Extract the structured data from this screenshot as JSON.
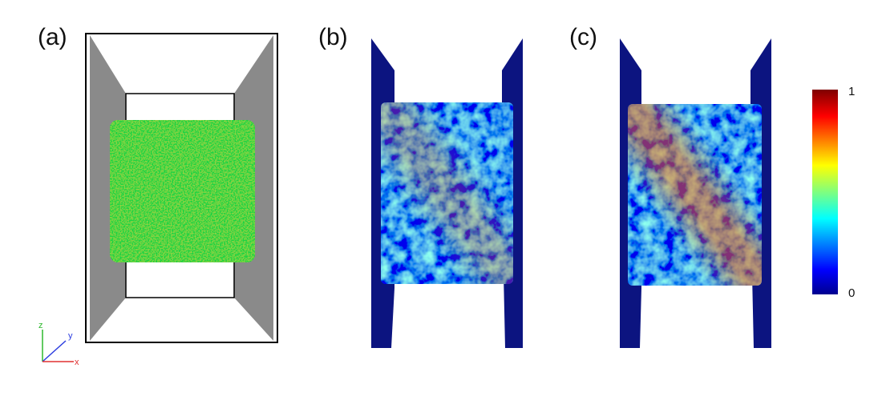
{
  "panels": [
    {
      "label": "(a)"
    },
    {
      "label": "(b)"
    },
    {
      "label": "(c)"
    }
  ],
  "axes": {
    "z": "z",
    "y": "y",
    "x": "x"
  },
  "colorbar": {
    "max": 1,
    "min": 0
  }
}
